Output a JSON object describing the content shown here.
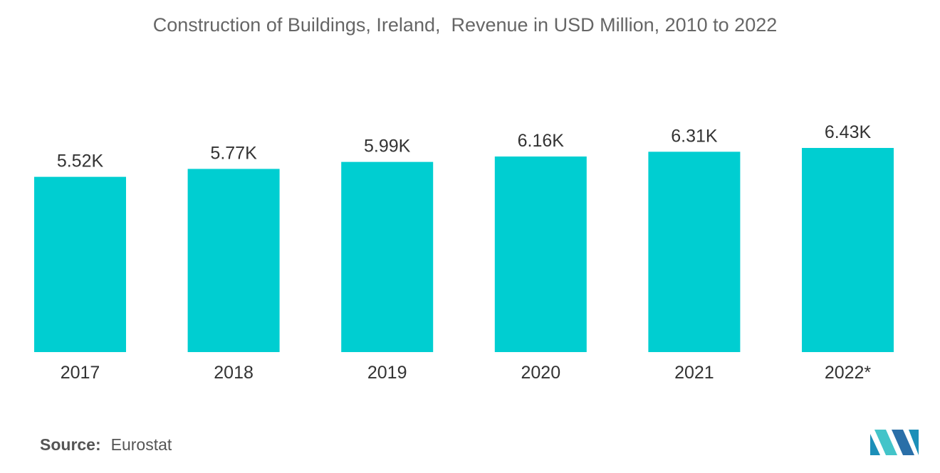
{
  "chart_data": {
    "type": "bar",
    "title": "Construction of Buildings, Ireland,  Revenue in USD Million, 2010 to 2022",
    "categories": [
      "2017",
      "2018",
      "2019",
      "2020",
      "2021",
      "2022*"
    ],
    "values": [
      5520,
      5770,
      5990,
      6160,
      6310,
      6430
    ],
    "data_labels": [
      "5.52K",
      "5.77K",
      "5.99K",
      "6.16K",
      "6.31K",
      "6.43K"
    ],
    "ylim": [
      0,
      6430
    ],
    "grid": false,
    "legend": "none",
    "bar_color": "#00CED1"
  },
  "source": {
    "label": "Source:",
    "value": "Eurostat"
  },
  "logo_colors": [
    "#1C8FB8",
    "#43C4C9",
    "#2A6FA8"
  ]
}
